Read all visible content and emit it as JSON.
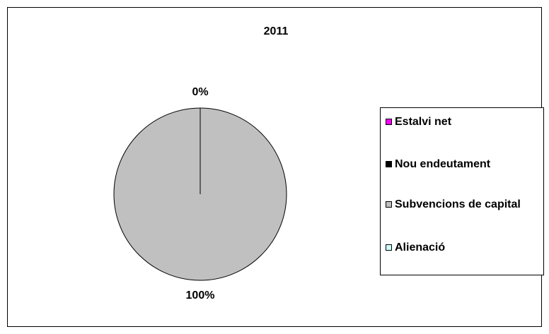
{
  "chart_data": {
    "type": "pie",
    "title": "2011",
    "categories": [
      "Estalvi net",
      "Nou endeutament",
      "Subvencions de capital",
      "Alienació"
    ],
    "values": [
      0,
      0,
      100,
      0
    ],
    "value_labels": [
      "0%",
      null,
      "100%",
      null
    ],
    "colors": [
      "#ff00ff",
      "#000000",
      "#c0c0c0",
      "#ccffff"
    ],
    "legend": "right"
  }
}
